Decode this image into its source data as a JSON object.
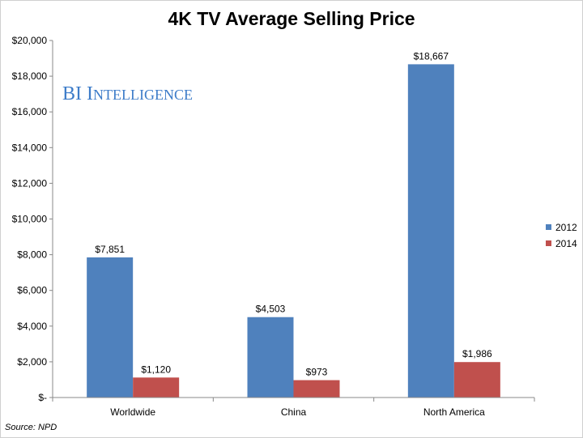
{
  "chart_data": {
    "type": "bar",
    "title": "4K TV Average Selling Price",
    "categories": [
      "Worldwide",
      "China",
      "North America"
    ],
    "series": [
      {
        "name": "2012",
        "values": [
          7851,
          4503,
          18667
        ],
        "labels": [
          "$7,851",
          "$4,503",
          "$18,667"
        ],
        "color": "#4f81bd"
      },
      {
        "name": "2014",
        "values": [
          1120,
          973,
          1986
        ],
        "labels": [
          "$1,120",
          "$973",
          "$1,986"
        ],
        "color": "#c0504d"
      }
    ],
    "ylim": [
      0,
      20000
    ],
    "yticks": [
      0,
      2000,
      4000,
      6000,
      8000,
      10000,
      12000,
      14000,
      16000,
      18000,
      20000
    ],
    "ytick_labels": [
      "$-",
      "$2,000",
      "$4,000",
      "$6,000",
      "$8,000",
      "$10,000",
      "$12,000",
      "$14,000",
      "$16,000",
      "$18,000",
      "$20,000"
    ],
    "xlabel": "",
    "ylabel": "",
    "grid": false,
    "legend": "right"
  },
  "watermark": {
    "big1": "BI ",
    "big2": "I",
    "small": "NTELLIGENCE"
  },
  "source": "Source: NPD"
}
